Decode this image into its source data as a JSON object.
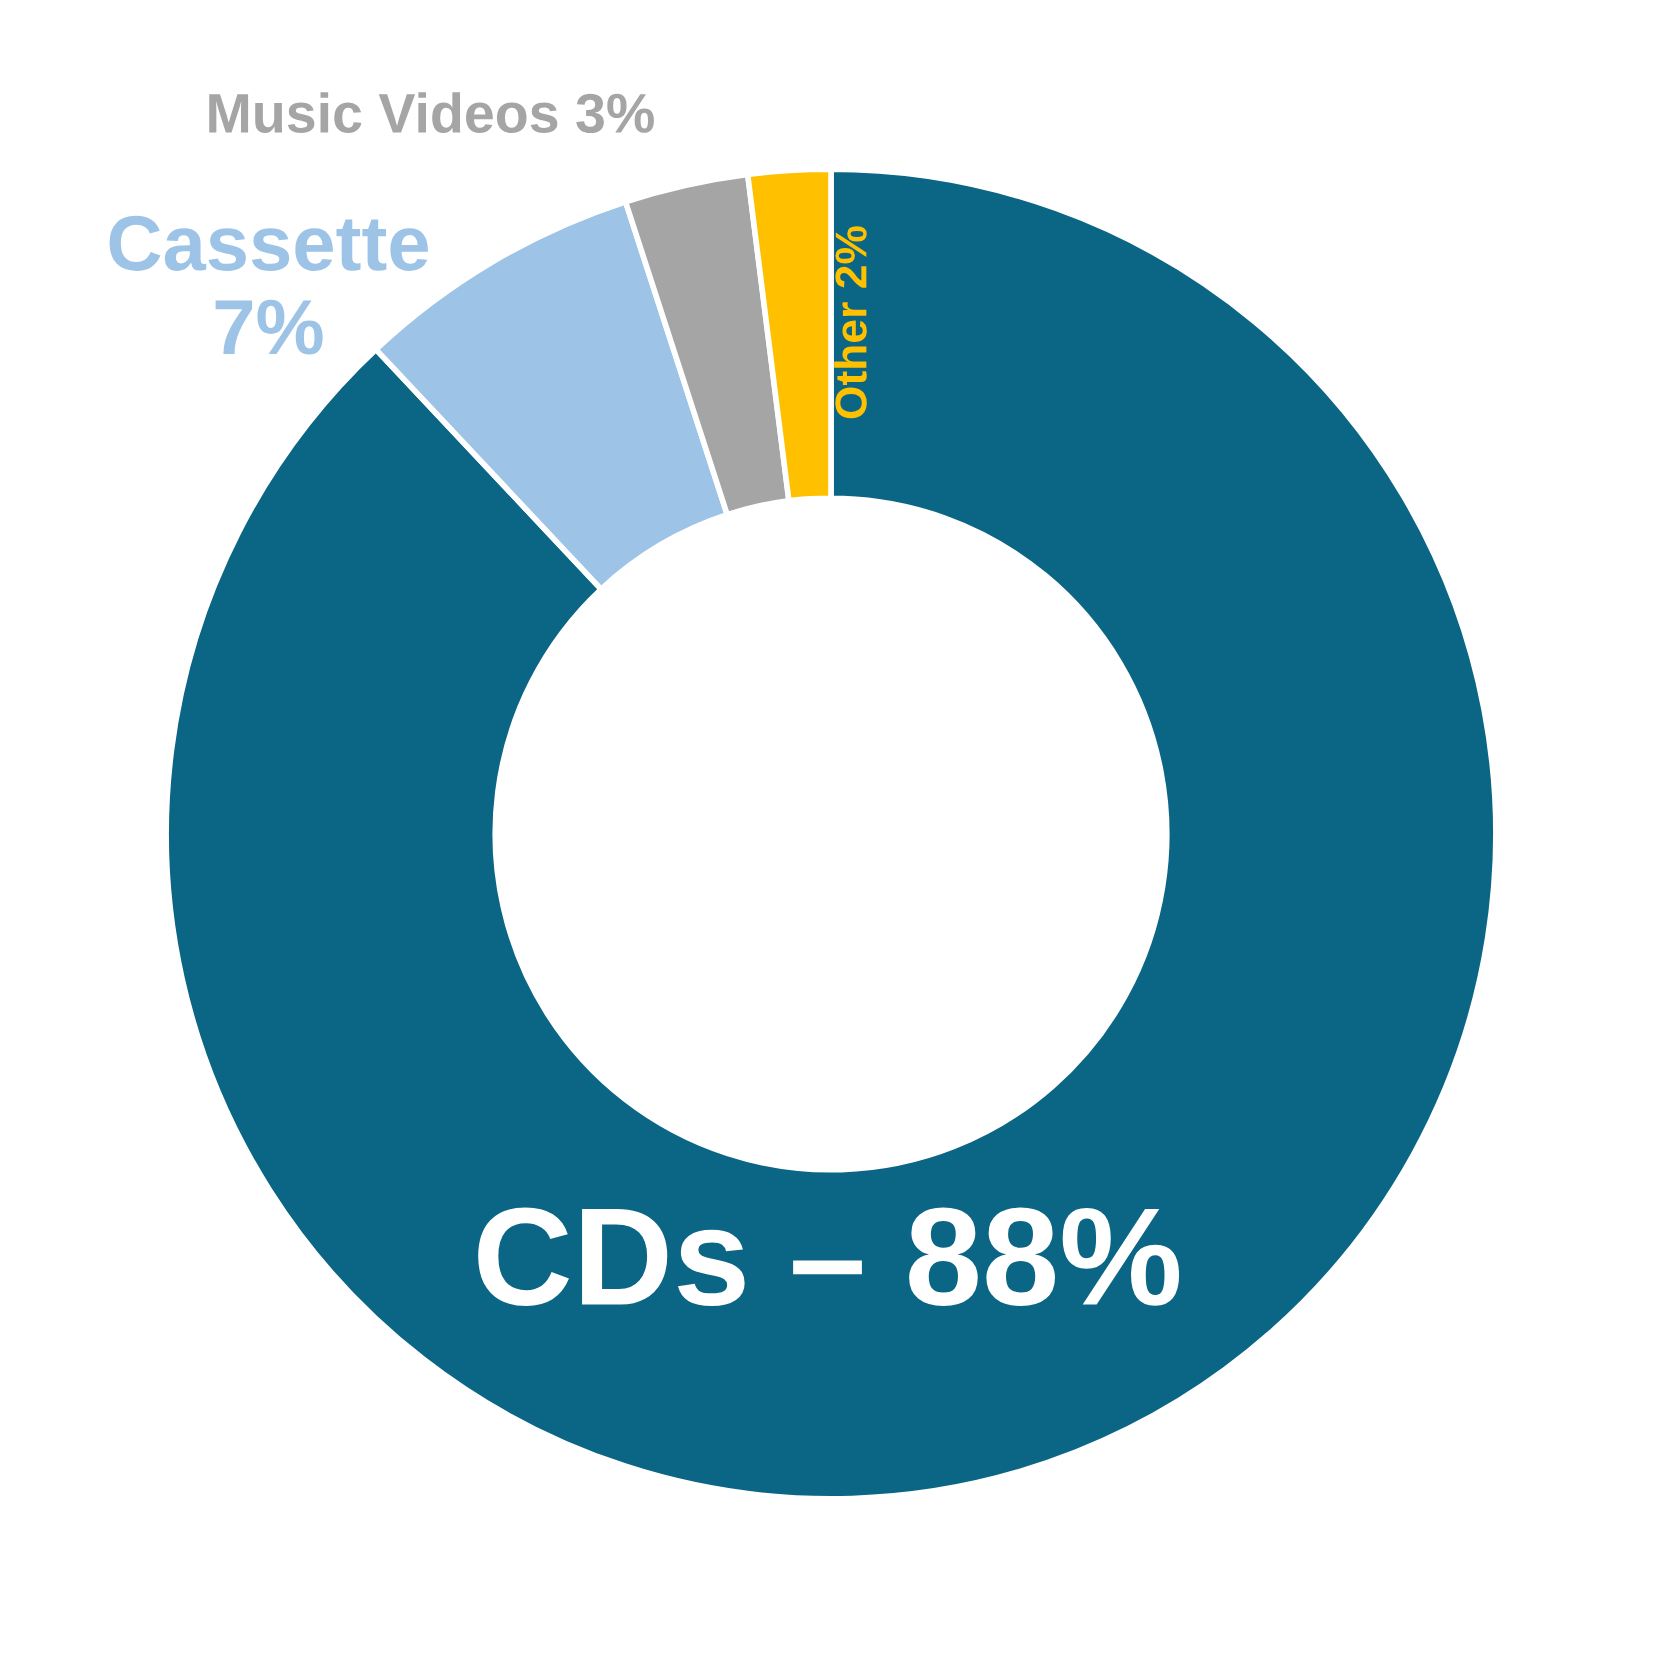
{
  "chart_data": {
    "type": "donut",
    "categories": [
      "CDs –",
      "Cassette",
      "Music Videos",
      "Other"
    ],
    "values": [
      88,
      7,
      3,
      2
    ],
    "colors": [
      "#0b6584",
      "#9dc3e6",
      "#a5a5a5",
      "#ffc000"
    ],
    "value_labels": [
      "88%",
      "7%",
      "3%",
      "2%"
    ],
    "legend": false
  }
}
